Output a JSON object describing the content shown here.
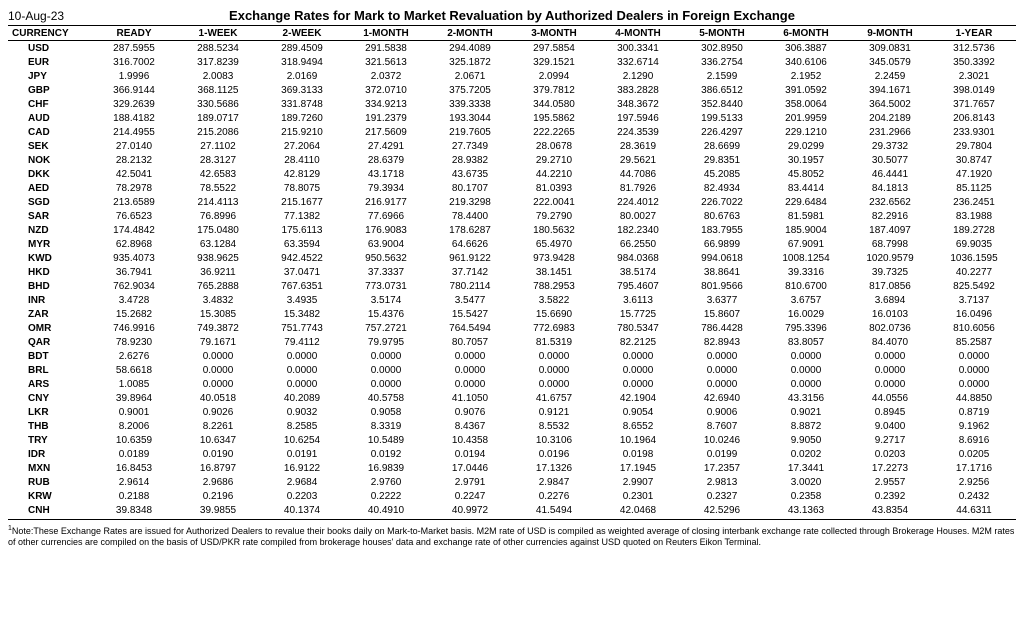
{
  "date_label": "10-Aug-23",
  "title": "Exchange Rates for Mark to Market Revaluation by Authorized Dealers in Foreign Exchange",
  "columns": [
    "CURRENCY",
    "READY",
    "1-WEEK",
    "2-WEEK",
    "1-MONTH",
    "2-MONTH",
    "3-MONTH",
    "4-MONTH",
    "5-MONTH",
    "6-MONTH",
    "9-MONTH",
    "1-YEAR"
  ],
  "rows": [
    [
      "USD",
      "287.5955",
      "288.5234",
      "289.4509",
      "291.5838",
      "294.4089",
      "297.5854",
      "300.3341",
      "302.8950",
      "306.3887",
      "309.0831",
      "312.5736"
    ],
    [
      "EUR",
      "316.7002",
      "317.8239",
      "318.9494",
      "321.5613",
      "325.1872",
      "329.1521",
      "332.6714",
      "336.2754",
      "340.6106",
      "345.0579",
      "350.3392"
    ],
    [
      "JPY",
      "1.9996",
      "2.0083",
      "2.0169",
      "2.0372",
      "2.0671",
      "2.0994",
      "2.1290",
      "2.1599",
      "2.1952",
      "2.2459",
      "2.3021"
    ],
    [
      "GBP",
      "366.9144",
      "368.1125",
      "369.3133",
      "372.0710",
      "375.7205",
      "379.7812",
      "383.2828",
      "386.6512",
      "391.0592",
      "394.1671",
      "398.0149"
    ],
    [
      "CHF",
      "329.2639",
      "330.5686",
      "331.8748",
      "334.9213",
      "339.3338",
      "344.0580",
      "348.3672",
      "352.8440",
      "358.0064",
      "364.5002",
      "371.7657"
    ],
    [
      "AUD",
      "188.4182",
      "189.0717",
      "189.7260",
      "191.2379",
      "193.3044",
      "195.5862",
      "197.5946",
      "199.5133",
      "201.9959",
      "204.2189",
      "206.8143"
    ],
    [
      "CAD",
      "214.4955",
      "215.2086",
      "215.9210",
      "217.5609",
      "219.7605",
      "222.2265",
      "224.3539",
      "226.4297",
      "229.1210",
      "231.2966",
      "233.9301"
    ],
    [
      "SEK",
      "27.0140",
      "27.1102",
      "27.2064",
      "27.4291",
      "27.7349",
      "28.0678",
      "28.3619",
      "28.6699",
      "29.0299",
      "29.3732",
      "29.7804"
    ],
    [
      "NOK",
      "28.2132",
      "28.3127",
      "28.4110",
      "28.6379",
      "28.9382",
      "29.2710",
      "29.5621",
      "29.8351",
      "30.1957",
      "30.5077",
      "30.8747"
    ],
    [
      "DKK",
      "42.5041",
      "42.6583",
      "42.8129",
      "43.1718",
      "43.6735",
      "44.2210",
      "44.7086",
      "45.2085",
      "45.8052",
      "46.4441",
      "47.1920"
    ],
    [
      "AED",
      "78.2978",
      "78.5522",
      "78.8075",
      "79.3934",
      "80.1707",
      "81.0393",
      "81.7926",
      "82.4934",
      "83.4414",
      "84.1813",
      "85.1125"
    ],
    [
      "SGD",
      "213.6589",
      "214.4113",
      "215.1677",
      "216.9177",
      "219.3298",
      "222.0041",
      "224.4012",
      "226.7022",
      "229.6484",
      "232.6562",
      "236.2451"
    ],
    [
      "SAR",
      "76.6523",
      "76.8996",
      "77.1382",
      "77.6966",
      "78.4400",
      "79.2790",
      "80.0027",
      "80.6763",
      "81.5981",
      "82.2916",
      "83.1988"
    ],
    [
      "NZD",
      "174.4842",
      "175.0480",
      "175.6113",
      "176.9083",
      "178.6287",
      "180.5632",
      "182.2340",
      "183.7955",
      "185.9004",
      "187.4097",
      "189.2728"
    ],
    [
      "MYR",
      "62.8968",
      "63.1284",
      "63.3594",
      "63.9004",
      "64.6626",
      "65.4970",
      "66.2550",
      "66.9899",
      "67.9091",
      "68.7998",
      "69.9035"
    ],
    [
      "KWD",
      "935.4073",
      "938.9625",
      "942.4522",
      "950.5632",
      "961.9122",
      "973.9428",
      "984.0368",
      "994.0618",
      "1008.1254",
      "1020.9579",
      "1036.1595"
    ],
    [
      "HKD",
      "36.7941",
      "36.9211",
      "37.0471",
      "37.3337",
      "37.7142",
      "38.1451",
      "38.5174",
      "38.8641",
      "39.3316",
      "39.7325",
      "40.2277"
    ],
    [
      "BHD",
      "762.9034",
      "765.2888",
      "767.6351",
      "773.0731",
      "780.2114",
      "788.2953",
      "795.4607",
      "801.9566",
      "810.6700",
      "817.0856",
      "825.5492"
    ],
    [
      "INR",
      "3.4728",
      "3.4832",
      "3.4935",
      "3.5174",
      "3.5477",
      "3.5822",
      "3.6113",
      "3.6377",
      "3.6757",
      "3.6894",
      "3.7137"
    ],
    [
      "ZAR",
      "15.2682",
      "15.3085",
      "15.3482",
      "15.4376",
      "15.5427",
      "15.6690",
      "15.7725",
      "15.8607",
      "16.0029",
      "16.0103",
      "16.0496"
    ],
    [
      "OMR",
      "746.9916",
      "749.3872",
      "751.7743",
      "757.2721",
      "764.5494",
      "772.6983",
      "780.5347",
      "786.4428",
      "795.3396",
      "802.0736",
      "810.6056"
    ],
    [
      "QAR",
      "78.9230",
      "79.1671",
      "79.4112",
      "79.9795",
      "80.7057",
      "81.5319",
      "82.2125",
      "82.8943",
      "83.8057",
      "84.4070",
      "85.2587"
    ],
    [
      "BDT",
      "2.6276",
      "0.0000",
      "0.0000",
      "0.0000",
      "0.0000",
      "0.0000",
      "0.0000",
      "0.0000",
      "0.0000",
      "0.0000",
      "0.0000"
    ],
    [
      "BRL",
      "58.6618",
      "0.0000",
      "0.0000",
      "0.0000",
      "0.0000",
      "0.0000",
      "0.0000",
      "0.0000",
      "0.0000",
      "0.0000",
      "0.0000"
    ],
    [
      "ARS",
      "1.0085",
      "0.0000",
      "0.0000",
      "0.0000",
      "0.0000",
      "0.0000",
      "0.0000",
      "0.0000",
      "0.0000",
      "0.0000",
      "0.0000"
    ],
    [
      "CNY",
      "39.8964",
      "40.0518",
      "40.2089",
      "40.5758",
      "41.1050",
      "41.6757",
      "42.1904",
      "42.6940",
      "43.3156",
      "44.0556",
      "44.8850"
    ],
    [
      "LKR",
      "0.9001",
      "0.9026",
      "0.9032",
      "0.9058",
      "0.9076",
      "0.9121",
      "0.9054",
      "0.9006",
      "0.9021",
      "0.8945",
      "0.8719"
    ],
    [
      "THB",
      "8.2006",
      "8.2261",
      "8.2585",
      "8.3319",
      "8.4367",
      "8.5532",
      "8.6552",
      "8.7607",
      "8.8872",
      "9.0400",
      "9.1962"
    ],
    [
      "TRY",
      "10.6359",
      "10.6347",
      "10.6254",
      "10.5489",
      "10.4358",
      "10.3106",
      "10.1964",
      "10.0246",
      "9.9050",
      "9.2717",
      "8.6916"
    ],
    [
      "IDR",
      "0.0189",
      "0.0190",
      "0.0191",
      "0.0192",
      "0.0194",
      "0.0196",
      "0.0198",
      "0.0199",
      "0.0202",
      "0.0203",
      "0.0205"
    ],
    [
      "MXN",
      "16.8453",
      "16.8797",
      "16.9122",
      "16.9839",
      "17.0446",
      "17.1326",
      "17.1945",
      "17.2357",
      "17.3441",
      "17.2273",
      "17.1716"
    ],
    [
      "RUB",
      "2.9614",
      "2.9686",
      "2.9684",
      "2.9760",
      "2.9791",
      "2.9847",
      "2.9907",
      "2.9813",
      "3.0020",
      "2.9557",
      "2.9256"
    ],
    [
      "KRW",
      "0.2188",
      "0.2196",
      "0.2203",
      "0.2222",
      "0.2247",
      "0.2276",
      "0.2301",
      "0.2327",
      "0.2358",
      "0.2392",
      "0.2432"
    ],
    [
      "CNH",
      "39.8348",
      "39.9855",
      "40.1374",
      "40.4910",
      "40.9972",
      "41.5494",
      "42.0468",
      "42.5296",
      "43.1363",
      "43.8354",
      "44.6311"
    ]
  ],
  "footnote": "Note:These Exchange Rates are issued for Authorized Dealers to revalue their books daily on Mark-to-Market basis. M2M rate of USD is compiled as weighted average of closing interbank exchange rate collected through Brokerage Houses. M2M rates of other currencies are compiled on the basis of USD/PKR rate compiled from brokerage houses' data and exchange rate of other currencies against USD quoted on Reuters Eikon Terminal."
}
